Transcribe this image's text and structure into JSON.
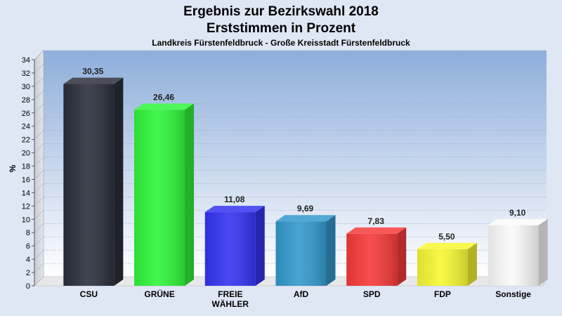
{
  "chart_data": {
    "type": "bar",
    "title": "Ergebnis zur Bezirkswahl 2018",
    "subtitle": "Erststimmen in Prozent",
    "subsubtitle": "Landkreis Fürstenfeldbruck - Große Kreisstadt Fürstenfeldbruck",
    "ylabel": "%",
    "xlabel": "",
    "ylim": [
      0,
      34
    ],
    "ytick_step": 2,
    "grid": true,
    "categories": [
      "CSU",
      "GRÜNE",
      "FREIE\nWÄHLER",
      "AfD",
      "SPD",
      "FDP",
      "Sonstige"
    ],
    "values": [
      30.35,
      26.46,
      11.08,
      9.69,
      7.83,
      5.5,
      9.1
    ],
    "value_labels": [
      "30,35",
      "26,46",
      "11,08",
      "9,69",
      "7,83",
      "5,50",
      "9,10"
    ],
    "colors": [
      "#2b2f3a",
      "#2ff53a",
      "#3434f2",
      "#3399cc",
      "#f73a3a",
      "#f7f734",
      "#fafafa"
    ]
  }
}
